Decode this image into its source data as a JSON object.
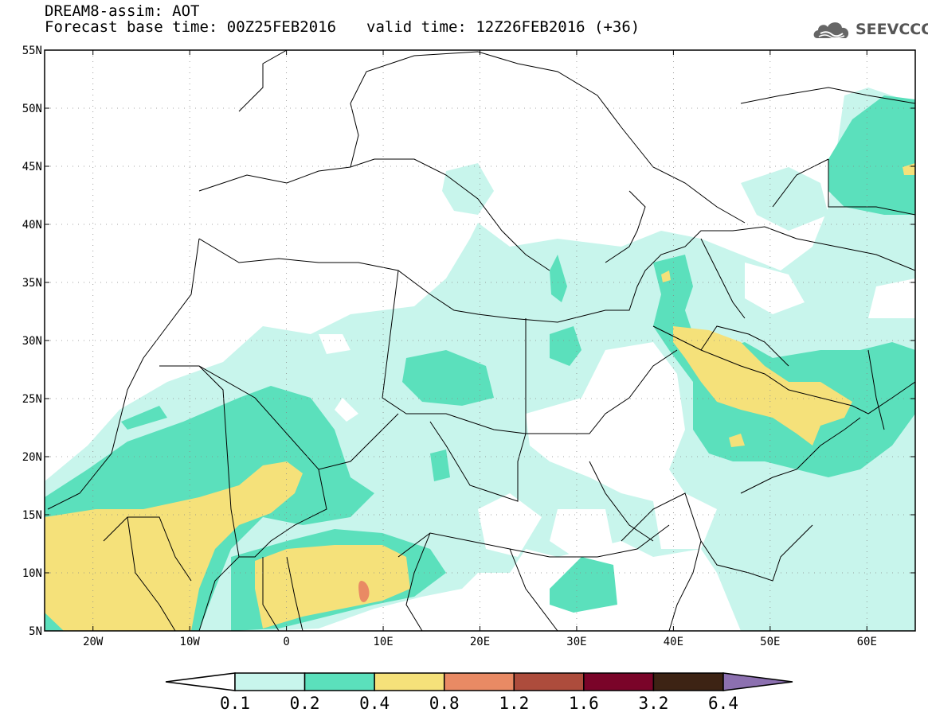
{
  "header": {
    "line1": "DREAM8-assim: AOT",
    "base_time": "Forecast base time: 00Z25FEB2016",
    "valid_time": "valid time: 12Z26FEB2016 (+36)",
    "logo_text": "SEEVCCC",
    "logo_icon": "cloud-icon"
  },
  "map": {
    "lon_range": [
      -25,
      65
    ],
    "lat_range": [
      5,
      55
    ],
    "lat_labels": [
      {
        "lat": 55,
        "label": "55N"
      },
      {
        "lat": 50,
        "label": "50N"
      },
      {
        "lat": 45,
        "label": "45N"
      },
      {
        "lat": 40,
        "label": "40N"
      },
      {
        "lat": 35,
        "label": "35N"
      },
      {
        "lat": 30,
        "label": "30N"
      },
      {
        "lat": 25,
        "label": "25N"
      },
      {
        "lat": 20,
        "label": "20N"
      },
      {
        "lat": 15,
        "label": "15N"
      },
      {
        "lat": 10,
        "label": "10N"
      },
      {
        "lat": 5,
        "label": "5N"
      }
    ],
    "lon_labels": [
      {
        "lon": -20,
        "label": "20W"
      },
      {
        "lon": -10,
        "label": "10W"
      },
      {
        "lon": 0,
        "label": "0"
      },
      {
        "lon": 10,
        "label": "10E"
      },
      {
        "lon": 20,
        "label": "20E"
      },
      {
        "lon": 30,
        "label": "30E"
      },
      {
        "lon": 40,
        "label": "40E"
      },
      {
        "lon": 50,
        "label": "50E"
      },
      {
        "lon": 60,
        "label": "60E"
      }
    ],
    "colors": {
      "c01": "#c8f5ec",
      "c02": "#5be0bc",
      "c04": "#f5e17a",
      "c08": "#e98a64",
      "c12": "#ad4c3c",
      "c16": "#7a0429",
      "c32": "#3d2314",
      "c64": "#8c70b0",
      "border": "#000000"
    }
  },
  "colorbar": {
    "ticks": [
      "0.1",
      "0.2",
      "0.4",
      "0.8",
      "1.2",
      "1.6",
      "3.2",
      "6.4"
    ],
    "colors": [
      "#ffffff",
      "#c8f5ec",
      "#5be0bc",
      "#f5e17a",
      "#e98a64",
      "#ad4c3c",
      "#7a0429",
      "#3d2314",
      "#8c70b0"
    ]
  }
}
